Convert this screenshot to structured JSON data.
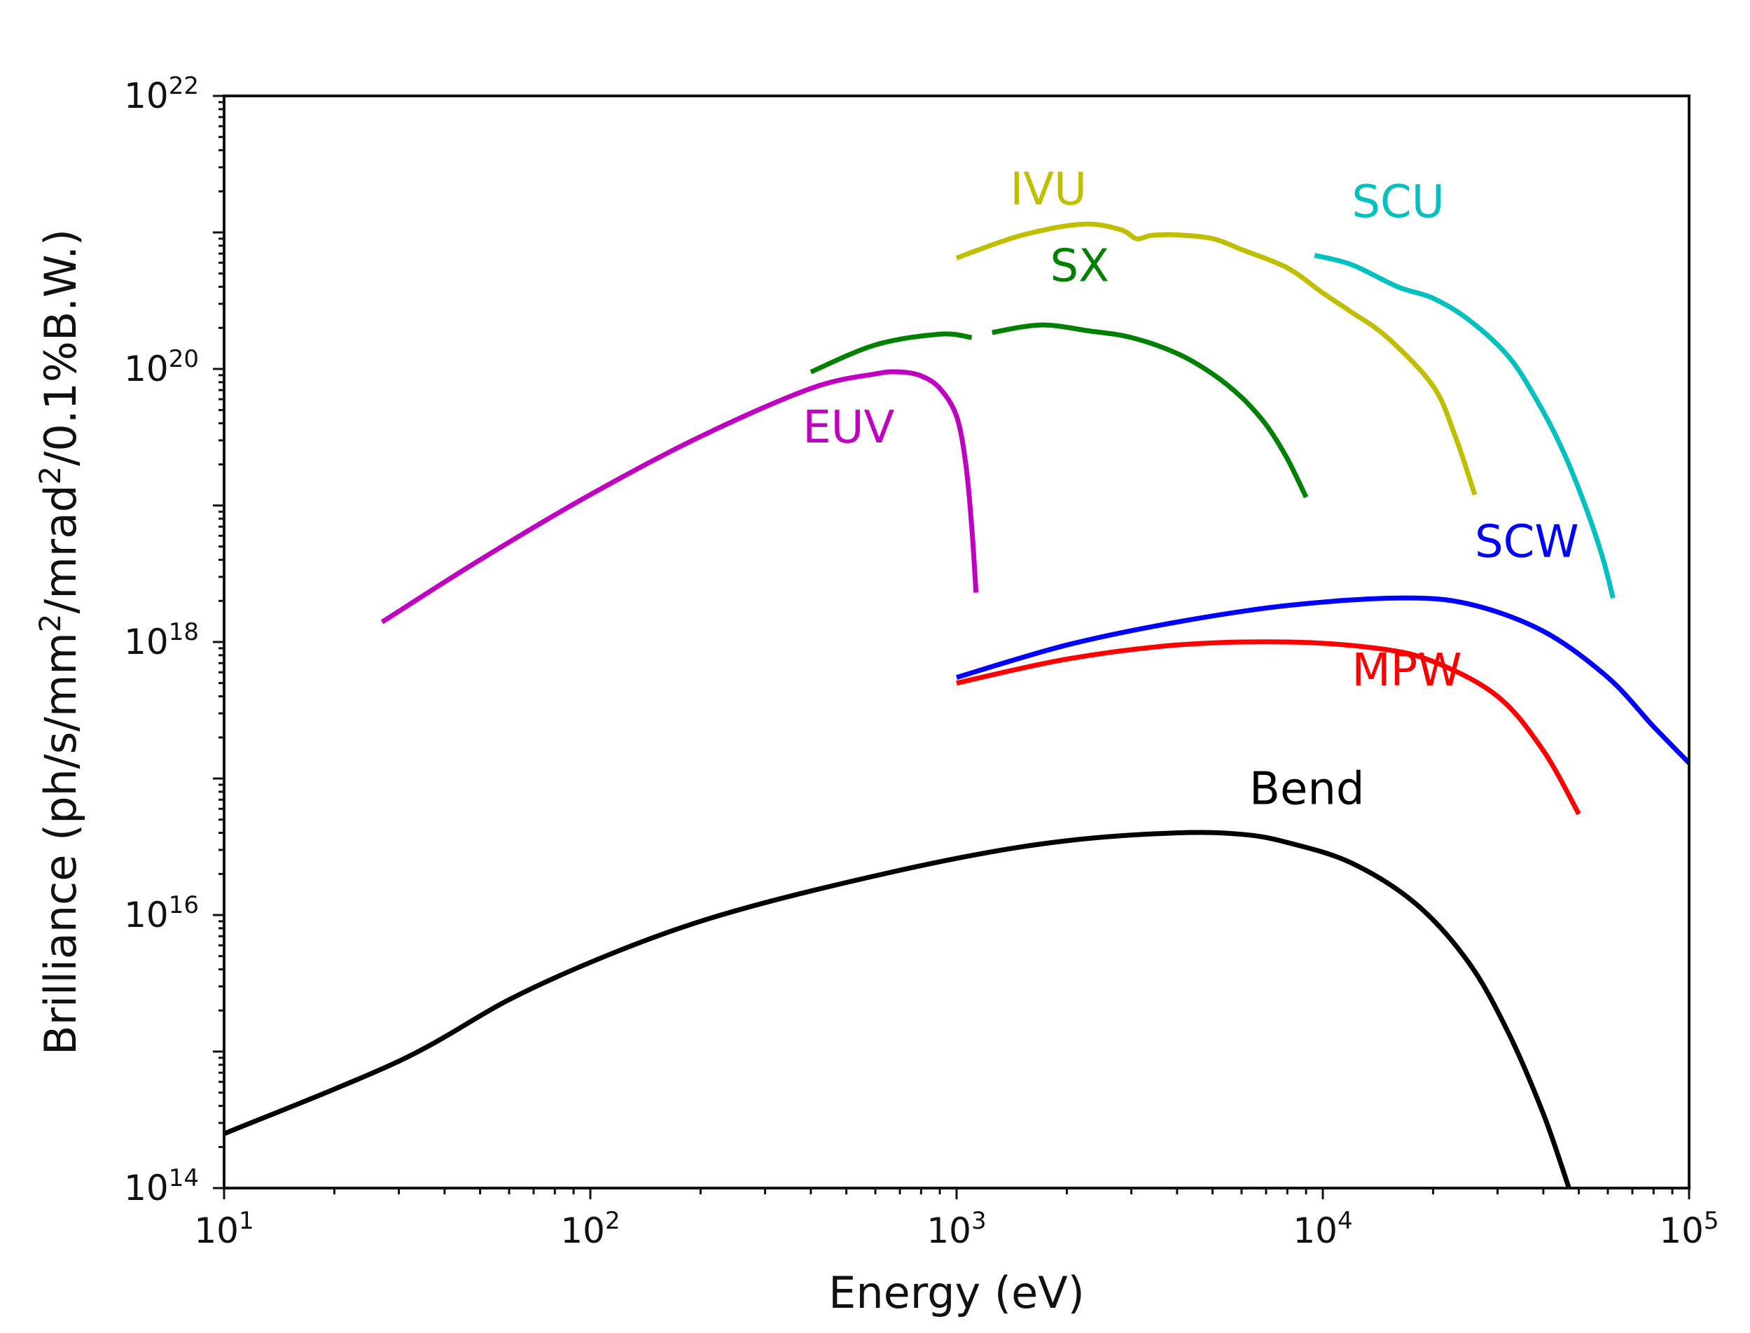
{
  "chart_data": {
    "type": "line",
    "title": "",
    "xlabel": "Energy (eV)",
    "ylabel": {
      "prefix": "Brilliance (ph/s/mm",
      "sup1": "2",
      "middle": "/mrad",
      "sup2": "2",
      "suffix": "/0.1%B.W.)"
    },
    "xscale": "log",
    "yscale": "log",
    "xlim": [
      10,
      100000
    ],
    "ylim": [
      100000000000000.0,
      1e+22
    ],
    "grid": false,
    "x_ticks": [
      {
        "value": 10,
        "base": "10",
        "exp": "1"
      },
      {
        "value": 100,
        "base": "10",
        "exp": "2"
      },
      {
        "value": 1000,
        "base": "10",
        "exp": "3"
      },
      {
        "value": 10000,
        "base": "10",
        "exp": "4"
      },
      {
        "value": 100000,
        "base": "10",
        "exp": "5"
      }
    ],
    "y_ticks": [
      {
        "value": 100000000000000.0,
        "base": "10",
        "exp": "14"
      },
      {
        "value": 1e+16,
        "base": "10",
        "exp": "16"
      },
      {
        "value": 1e+18,
        "base": "10",
        "exp": "18"
      },
      {
        "value": 1e+20,
        "base": "10",
        "exp": "20"
      },
      {
        "value": 1e+22,
        "base": "10",
        "exp": "22"
      }
    ],
    "series": [
      {
        "name": "EUV",
        "color": "#c000c0",
        "label_at": [
          380,
          2.9e+19
        ],
        "segments": [
          [
            [
              27,
              1.4e+18
            ],
            [
              50,
              4e+18
            ],
            [
              100,
              1.2e+19
            ],
            [
              200,
              3.2e+19
            ],
            [
              400,
              7.2e+19
            ],
            [
              600,
              9.2e+19
            ],
            [
              700,
              9.5e+19
            ],
            [
              800,
              8.9e+19
            ],
            [
              900,
              7.2e+19
            ],
            [
              1000,
              4.5e+19
            ],
            [
              1060,
              2e+19
            ],
            [
              1100,
              7e+18
            ],
            [
              1130,
              2.3e+18
            ]
          ]
        ]
      },
      {
        "name": "SX",
        "color": "#008000",
        "label_at": [
          1800,
          4.4e+20
        ],
        "segments": [
          [
            [
              400,
              9.5e+19
            ],
            [
              600,
              1.5e+20
            ],
            [
              900,
              1.8e+20
            ],
            [
              1100,
              1.7e+20
            ]
          ],
          [
            [
              1250,
              1.85e+20
            ],
            [
              1700,
              2.1e+20
            ],
            [
              2300,
              1.9e+20
            ],
            [
              3000,
              1.7e+20
            ],
            [
              4000,
              1.3e+20
            ],
            [
              5000,
              9.2e+19
            ],
            [
              6000,
              6.2e+19
            ],
            [
              7000,
              3.9e+19
            ],
            [
              8000,
              2.2e+19
            ],
            [
              9000,
              1.15e+19
            ]
          ]
        ]
      },
      {
        "name": "IVU",
        "color": "#bfbf00",
        "label_at": [
          1400,
          1.6e+21
        ],
        "segments": [
          [
            [
              1000,
              6.5e+20
            ],
            [
              1500,
              9.5e+20
            ],
            [
              2200,
              1.15e+21
            ],
            [
              2800,
              1.05e+21
            ],
            [
              3100,
              9e+20
            ],
            [
              3400,
              9.5e+20
            ],
            [
              4000,
              9.6e+20
            ],
            [
              5000,
              9e+20
            ],
            [
              6000,
              7.5e+20
            ],
            [
              8000,
              5.5e+20
            ],
            [
              10000,
              3.6e+20
            ],
            [
              12000,
              2.6e+20
            ],
            [
              15000,
              1.7e+20
            ],
            [
              20000,
              7.5e+19
            ],
            [
              23000,
              3.2e+19
            ],
            [
              26000,
              1.2e+19
            ]
          ]
        ]
      },
      {
        "name": "SCU",
        "color": "#00c0c0",
        "label_at": [
          12000,
          1.3e+21
        ],
        "segments": [
          [
            [
              9500,
              6.8e+20
            ],
            [
              12000,
              5.8e+20
            ],
            [
              16000,
              4e+20
            ],
            [
              20000,
              3.3e+20
            ],
            [
              25000,
              2.3e+20
            ],
            [
              32000,
              1.25e+20
            ],
            [
              38000,
              6.2e+19
            ],
            [
              45000,
              2.6e+19
            ],
            [
              52000,
              1e+19
            ],
            [
              58000,
              4.2e+18
            ],
            [
              62000,
              2.1e+18
            ]
          ]
        ]
      },
      {
        "name": "SCW",
        "color": "#0000ff",
        "label_at": [
          26000,
          4.2e+18
        ],
        "segments": [
          [
            [
              1000,
              5.5e+17
            ],
            [
              2000,
              9.5e+17
            ],
            [
              4000,
              1.4e+18
            ],
            [
              8000,
              1.85e+18
            ],
            [
              16000,
              2.1e+18
            ],
            [
              25000,
              1.9e+18
            ],
            [
              40000,
              1.2e+18
            ],
            [
              60000,
              5.5e+17
            ],
            [
              80000,
              2.4e+17
            ],
            [
              100000,
              1.3e+17
            ]
          ]
        ]
      },
      {
        "name": "MPW",
        "color": "#ff0000",
        "label_at": [
          12000,
          4.8e+17
        ],
        "segments": [
          [
            [
              1000,
              5e+17
            ],
            [
              2000,
              7.5e+17
            ],
            [
              4000,
              9.5e+17
            ],
            [
              8000,
              1e+18
            ],
            [
              14000,
              9e+17
            ],
            [
              20000,
              7.2e+17
            ],
            [
              30000,
              4e+17
            ],
            [
              40000,
              1.6e+17
            ],
            [
              50000,
              5.5e+16
            ]
          ]
        ]
      },
      {
        "name": "Bend",
        "color": "#000000",
        "label_at": [
          6300,
          6.5e+16
        ],
        "segments": [
          [
            [
              10,
              250000000000000.0
            ],
            [
              30,
              850000000000000.0
            ],
            [
              60,
              2400000000000000.0
            ],
            [
              110,
              5000000000000000.0
            ],
            [
              200,
              9000000000000000.0
            ],
            [
              400,
              1.5e+16
            ],
            [
              1000,
              2.6e+16
            ],
            [
              2000,
              3.5e+16
            ],
            [
              4000,
              4e+16
            ],
            [
              6000,
              3.9e+16
            ],
            [
              8000,
              3.4e+16
            ],
            [
              12000,
              2.4e+16
            ],
            [
              18000,
              1.2e+16
            ],
            [
              25000,
              4500000000000000.0
            ],
            [
              32000,
              1400000000000000.0
            ],
            [
              40000,
              350000000000000.0
            ],
            [
              47000,
              100000000000000.0
            ]
          ]
        ]
      }
    ]
  }
}
